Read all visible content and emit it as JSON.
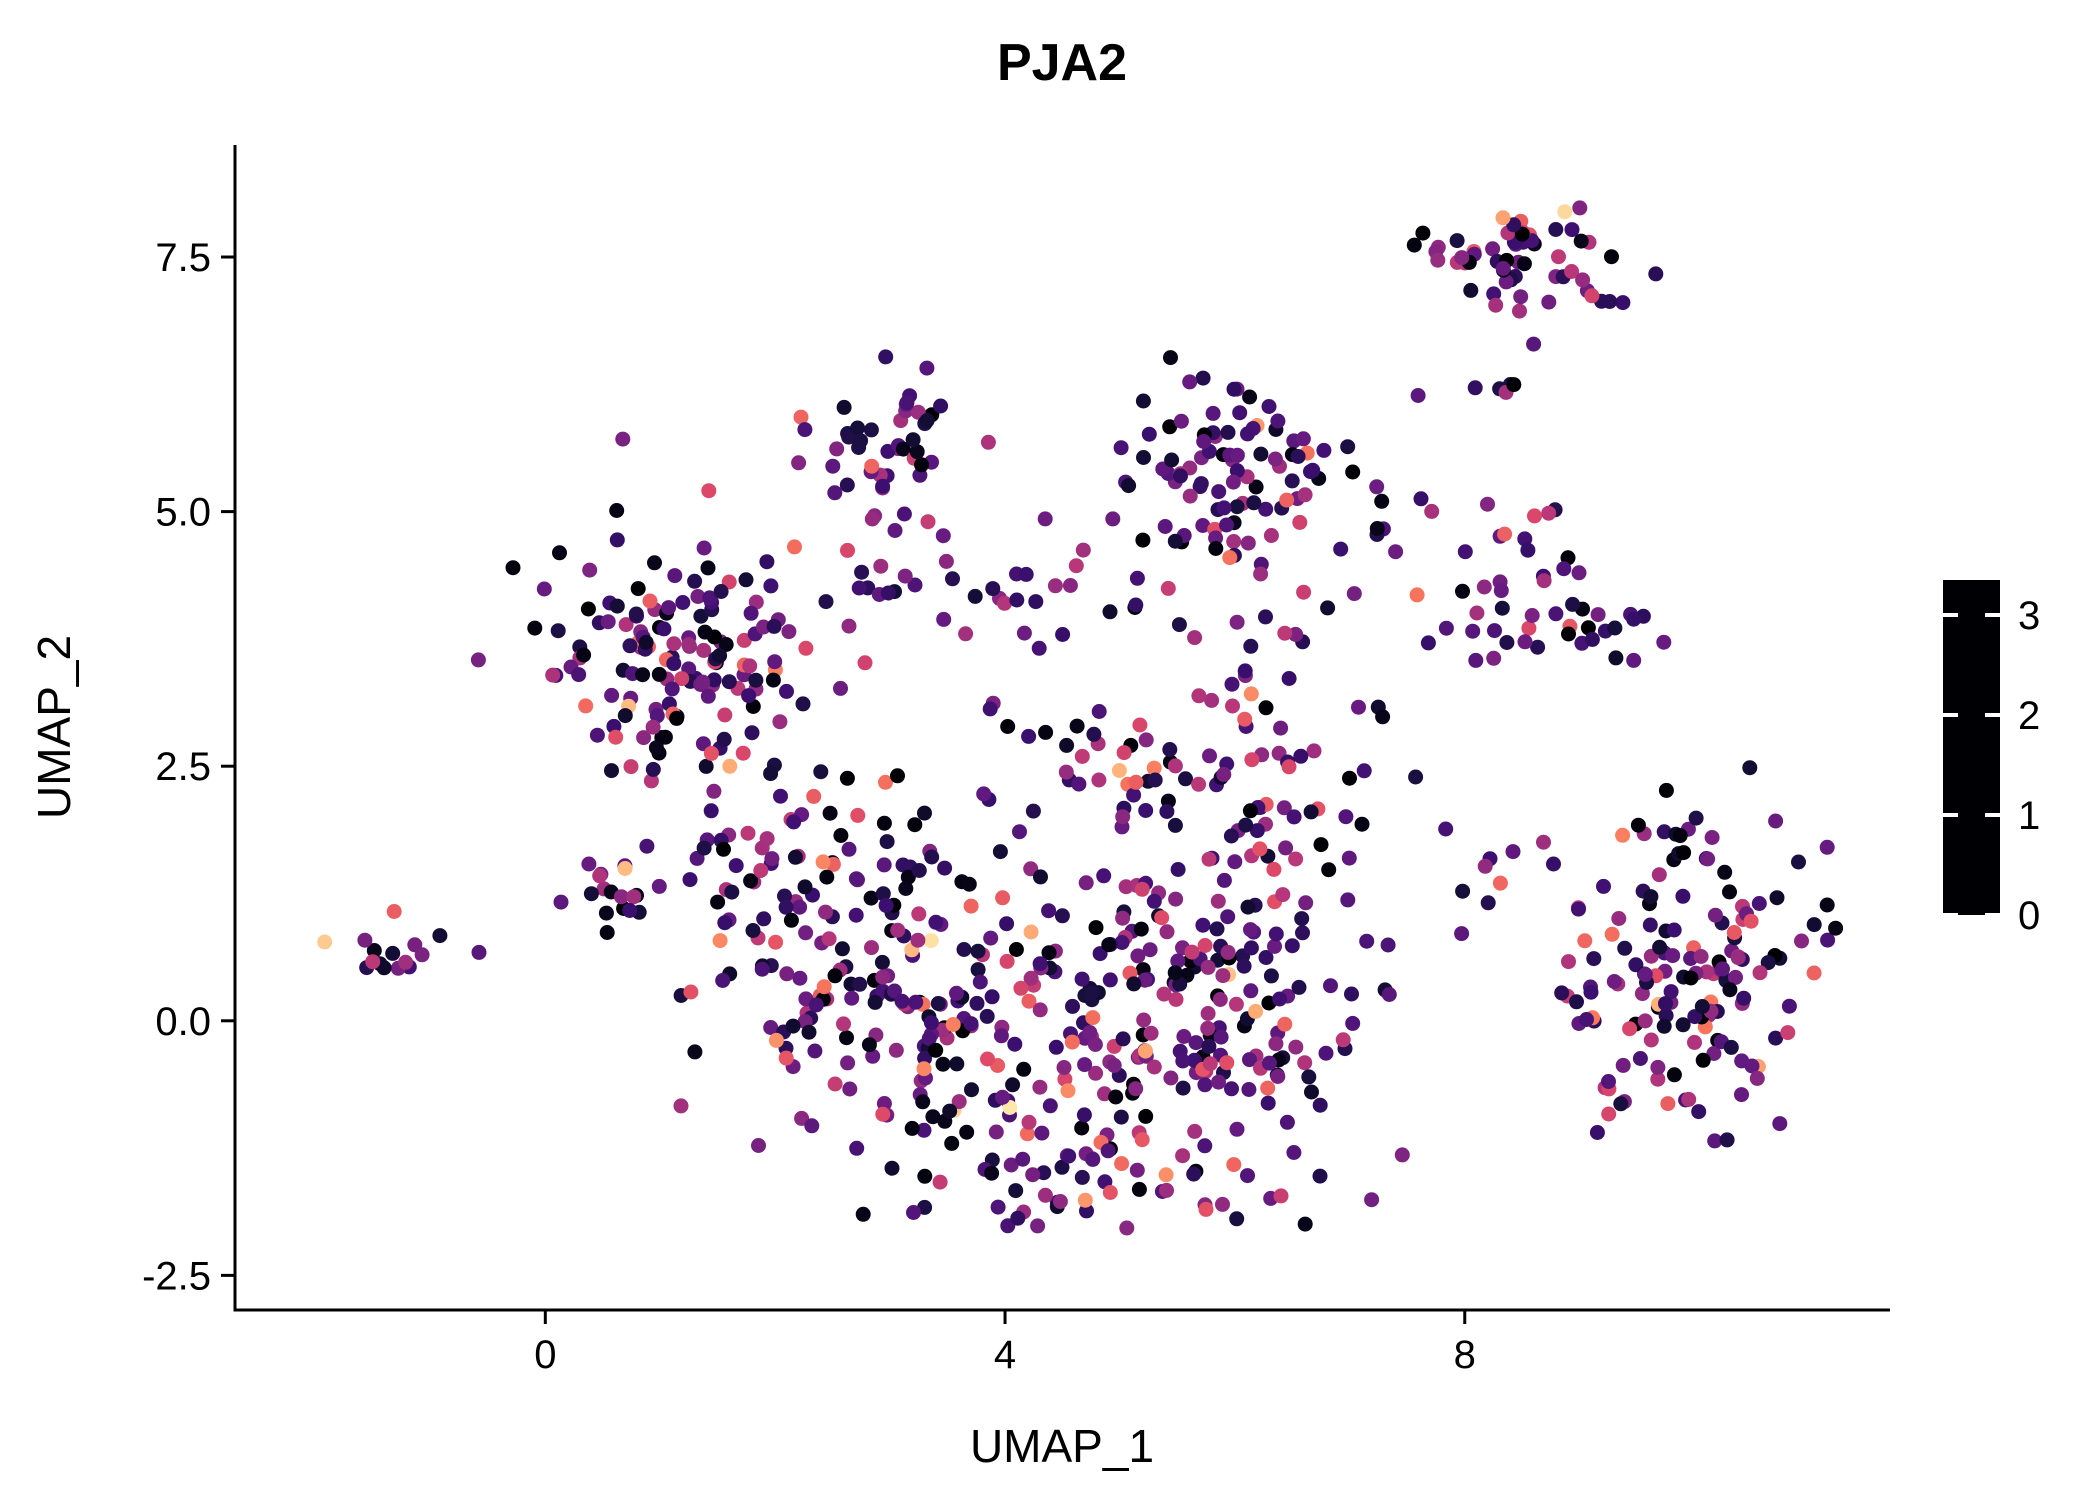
{
  "title": "PJA2",
  "colors": {
    "background": "#ffffff",
    "axis": "#000000",
    "text": "#000000"
  },
  "chart_data": {
    "type": "scatter",
    "title": "PJA2",
    "xlabel": "UMAP_1",
    "ylabel": "UMAP_2",
    "xlim": [
      -2.7,
      11.7
    ],
    "ylim": [
      -2.84,
      8.6
    ],
    "grid": false,
    "x_ticks": [
      {
        "v": 0,
        "label": "0"
      },
      {
        "v": 4,
        "label": "4"
      },
      {
        "v": 8,
        "label": "8"
      }
    ],
    "y_ticks": [
      {
        "v": -2.5,
        "label": "-2.5"
      },
      {
        "v": 0.0,
        "label": "0.0"
      },
      {
        "v": 2.5,
        "label": "2.5"
      },
      {
        "v": 5.0,
        "label": "5.0"
      },
      {
        "v": 7.5,
        "label": "7.5"
      }
    ],
    "legend": {
      "position": "right",
      "vmin": 0,
      "vmax": 3.35,
      "ticks": [
        {
          "v": 0,
          "label": "0"
        },
        {
          "v": 1,
          "label": "1"
        },
        {
          "v": 2,
          "label": "2"
        },
        {
          "v": 3,
          "label": "3"
        }
      ]
    },
    "colormap": {
      "name": "magma",
      "stops": [
        {
          "t": 0.0,
          "color": "#000004"
        },
        {
          "t": 0.13,
          "color": "#160f3b"
        },
        {
          "t": 0.25,
          "color": "#3b0f70"
        },
        {
          "t": 0.38,
          "color": "#641a80"
        },
        {
          "t": 0.5,
          "color": "#8c2981"
        },
        {
          "t": 0.63,
          "color": "#b5367a"
        },
        {
          "t": 0.75,
          "color": "#de4968"
        },
        {
          "t": 0.87,
          "color": "#f8765c"
        },
        {
          "t": 0.94,
          "color": "#feb078"
        },
        {
          "t": 1.0,
          "color": "#fcfdbf"
        }
      ]
    },
    "point_radius_px": 7.5,
    "seed": 7,
    "bounds": {
      "xmin": -2.1,
      "xmax": 11.35,
      "ymin": -2.05,
      "ymax": 8.15
    },
    "clusters": [
      {
        "name": "far-left",
        "cx": -1.35,
        "cy": 0.68,
        "sx": 0.28,
        "sy": 0.13,
        "n": 16
      },
      {
        "name": "left-main",
        "cx": 1.15,
        "cy": 3.75,
        "sx": 0.55,
        "sy": 0.6,
        "n": 120
      },
      {
        "name": "left-halo",
        "cx": 1.5,
        "cy": 2.9,
        "sx": 0.5,
        "sy": 0.45,
        "n": 30
      },
      {
        "name": "left-small",
        "cx": 0.7,
        "cy": 1.3,
        "sx": 0.28,
        "sy": 0.18,
        "n": 18
      },
      {
        "name": "upper-left",
        "cx": 2.95,
        "cy": 5.6,
        "sx": 0.33,
        "sy": 0.38,
        "n": 48
      },
      {
        "name": "top-middle",
        "cx": 5.95,
        "cy": 5.4,
        "sx": 0.45,
        "sy": 0.42,
        "n": 90
      },
      {
        "name": "top-right",
        "cx": 8.55,
        "cy": 7.5,
        "sx": 0.5,
        "sy": 0.27,
        "n": 58
      },
      {
        "name": "top-right-stragglers",
        "cx": 8.15,
        "cy": 6.5,
        "sx": 0.45,
        "sy": 0.35,
        "n": 7
      },
      {
        "name": "right-upper",
        "cx": 8.75,
        "cy": 4.2,
        "sx": 0.42,
        "sy": 0.45,
        "n": 48
      },
      {
        "name": "bridge-mid-upper",
        "cx": 7.3,
        "cy": 4.6,
        "sx": 0.3,
        "sy": 0.4,
        "n": 8
      },
      {
        "name": "center-left",
        "cx": 2.1,
        "cy": 1.3,
        "sx": 0.55,
        "sy": 0.6,
        "n": 55
      },
      {
        "name": "center-a",
        "cx": 3.0,
        "cy": 0.5,
        "sx": 0.8,
        "sy": 0.85,
        "n": 120
      },
      {
        "name": "center-b",
        "cx": 4.5,
        "cy": 0.1,
        "sx": 0.95,
        "sy": 0.85,
        "n": 150
      },
      {
        "name": "center-c",
        "cx": 5.8,
        "cy": 0.2,
        "sx": 0.75,
        "sy": 0.85,
        "n": 115
      },
      {
        "name": "center-bottom",
        "cx": 4.8,
        "cy": -1.5,
        "sx": 0.9,
        "sy": 0.4,
        "n": 55
      },
      {
        "name": "center-upper-right",
        "cx": 6.4,
        "cy": 1.8,
        "sx": 0.5,
        "sy": 0.55,
        "n": 45
      },
      {
        "name": "center-top-band",
        "cx": 5.3,
        "cy": 2.5,
        "sx": 0.8,
        "sy": 0.4,
        "n": 45
      },
      {
        "name": "mid-band",
        "cx": 3.8,
        "cy": 4.15,
        "sx": 1.0,
        "sy": 0.3,
        "n": 40
      },
      {
        "name": "center-to-top",
        "cx": 6.3,
        "cy": 3.7,
        "sx": 0.45,
        "sy": 0.55,
        "n": 28
      },
      {
        "name": "bridge-right",
        "cx": 8.4,
        "cy": 1.7,
        "sx": 0.3,
        "sy": 0.35,
        "n": 8
      },
      {
        "name": "right-main",
        "cx": 10.05,
        "cy": 0.45,
        "sx": 0.65,
        "sy": 0.8,
        "n": 155
      }
    ],
    "value_distribution": [
      {
        "p": 0.12,
        "min": 0.0,
        "max": 0.2
      },
      {
        "p": 0.3,
        "min": 0.3,
        "max": 0.9
      },
      {
        "p": 0.26,
        "min": 0.9,
        "max": 1.5
      },
      {
        "p": 0.19,
        "min": 1.5,
        "max": 2.2
      },
      {
        "p": 0.09,
        "min": 2.2,
        "max": 2.8
      },
      {
        "p": 0.04,
        "min": 2.8,
        "max": 3.3
      }
    ]
  }
}
